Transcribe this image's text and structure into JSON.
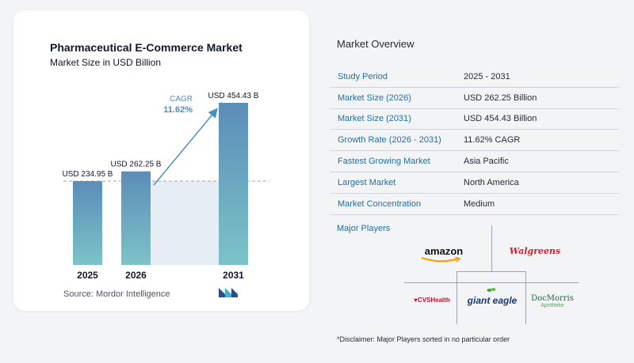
{
  "chart_data": {
    "type": "bar",
    "title": "Pharmaceutical E-Commerce Market",
    "subtitle": "Market Size in USD Billion",
    "categories": [
      "2025",
      "2026",
      "2031"
    ],
    "values": [
      234.95,
      262.25,
      454.43
    ],
    "value_labels": [
      "USD 234.95 B",
      "USD 262.25 B",
      "USD 454.43 B"
    ],
    "cagr_label": "CAGR",
    "cagr_value": "11.62%",
    "grid": false,
    "legend": "none",
    "colors": {
      "bar_top": "#5b8db8",
      "bar_bottom": "#7cc3c8",
      "shade": "#e5eef5",
      "cagr": "#4a8fc0"
    }
  },
  "source": "Source:  Mordor Intelligence",
  "overview": {
    "title": "Market Overview",
    "rows": [
      {
        "label": "Study Period",
        "value": "2025 - 2031"
      },
      {
        "label": "Market Size (2026)",
        "value": "USD 262.25 Billion"
      },
      {
        "label": "Market Size (2031)",
        "value": "USD 454.43 Billion"
      },
      {
        "label": "Growth Rate (2026 - 2031)",
        "value": "11.62% CAGR"
      },
      {
        "label": "Fastest Growing Market",
        "value": "Asia Pacific"
      },
      {
        "label": "Largest Market",
        "value": "North America"
      },
      {
        "label": "Market Concentration",
        "value": "Medium"
      }
    ]
  },
  "players": {
    "title": "Major Players",
    "names": [
      "amazon",
      "Walgreens",
      "CVSHealth",
      "giant eagle",
      "DocMorris",
      "Apotheke"
    ]
  },
  "disclaimer": "*Disclaimer: Major Players sorted in no particular order"
}
